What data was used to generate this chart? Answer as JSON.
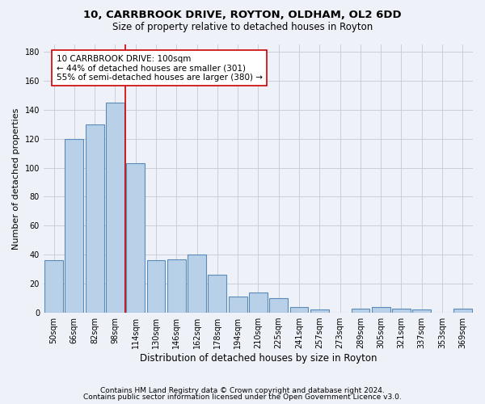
{
  "title_line1": "10, CARRBROOK DRIVE, ROYTON, OLDHAM, OL2 6DD",
  "title_line2": "Size of property relative to detached houses in Royton",
  "xlabel": "Distribution of detached houses by size in Royton",
  "ylabel": "Number of detached properties",
  "bar_labels": [
    "50sqm",
    "66sqm",
    "82sqm",
    "98sqm",
    "114sqm",
    "130sqm",
    "146sqm",
    "162sqm",
    "178sqm",
    "194sqm",
    "210sqm",
    "225sqm",
    "241sqm",
    "257sqm",
    "273sqm",
    "289sqm",
    "305sqm",
    "321sqm",
    "337sqm",
    "353sqm",
    "369sqm"
  ],
  "bar_values": [
    36,
    120,
    130,
    145,
    103,
    36,
    37,
    40,
    26,
    11,
    14,
    10,
    4,
    2,
    0,
    3,
    4,
    3,
    2,
    0,
    3
  ],
  "bar_color": "#b8d0e8",
  "bar_edge_color": "#5a8ab8",
  "bar_edge_width": 0.8,
  "vline_bin_index": 3,
  "vline_color": "#cc0000",
  "annotation_line1": "10 CARRBROOK DRIVE: 100sqm",
  "annotation_line2": "← 44% of detached houses are smaller (301)",
  "annotation_line3": "55% of semi-detached houses are larger (380) →",
  "annotation_fontsize": 7.5,
  "annotation_box_edgecolor": "#cc0000",
  "annotation_box_facecolor": "white",
  "ylim": [
    0,
    185
  ],
  "yticks": [
    0,
    20,
    40,
    60,
    80,
    100,
    120,
    140,
    160,
    180
  ],
  "footnote_line1": "Contains HM Land Registry data © Crown copyright and database right 2024.",
  "footnote_line2": "Contains public sector information licensed under the Open Government Licence v3.0.",
  "background_color": "#eef2f8",
  "grid_color": "#c8c8d0",
  "title_fontsize": 9.5,
  "subtitle_fontsize": 8.5,
  "ylabel_fontsize": 8,
  "xlabel_fontsize": 8.5,
  "tick_fontsize": 7,
  "footnote_fontsize": 6.5
}
